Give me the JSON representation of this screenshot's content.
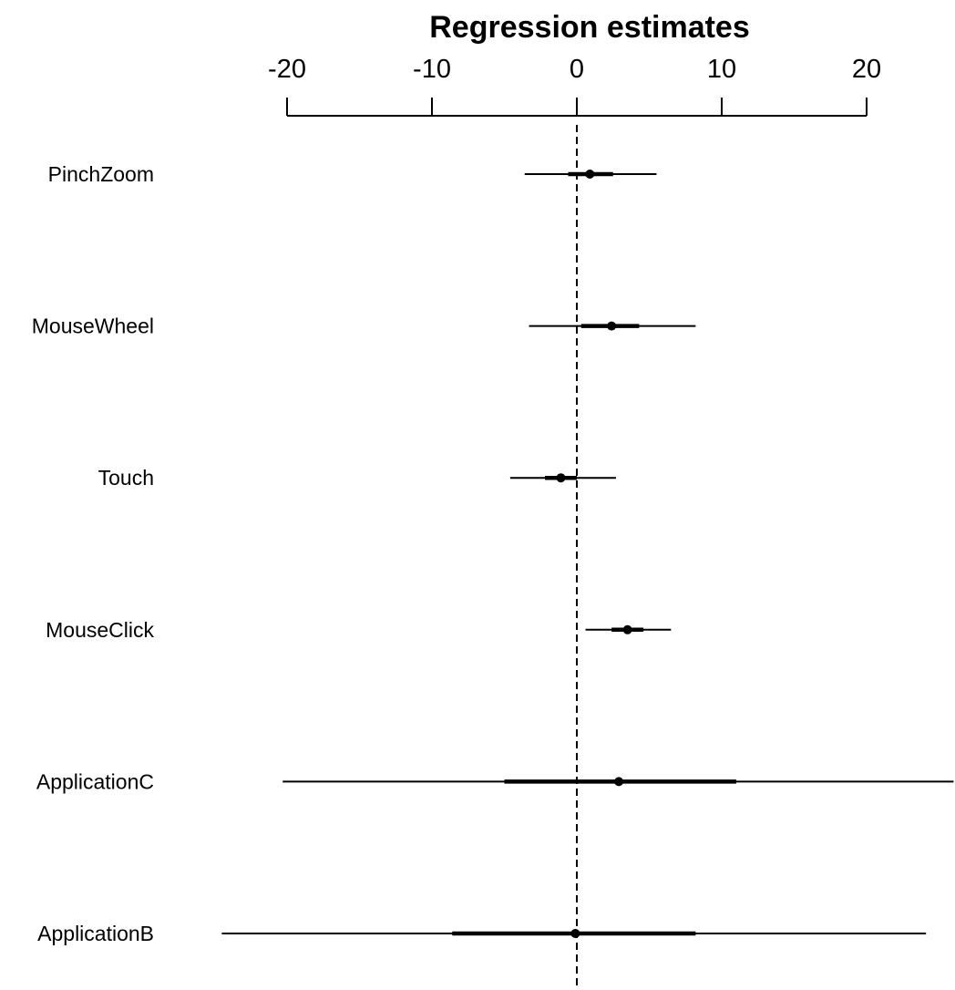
{
  "chart_data": {
    "type": "coefficient-plot",
    "title": "Regression estimates",
    "xlabel": "",
    "ylabel": "",
    "x_ticks": [
      -20,
      -10,
      0,
      10,
      20
    ],
    "x_tick_labels": [
      "-20",
      "-10",
      "0",
      "10",
      "20"
    ],
    "xlim": [
      -20,
      20
    ],
    "reference_line": 0,
    "axis_position": "top",
    "grid": false,
    "legend": "none",
    "colors": {
      "marks": "#000000",
      "reference_line": "#000000"
    },
    "rows": [
      {
        "label": "PinchZoom",
        "estimate": 0.9,
        "inner": [
          -0.6,
          2.5
        ],
        "outer": [
          -3.6,
          5.5
        ]
      },
      {
        "label": "MouseWheel",
        "estimate": 2.4,
        "inner": [
          0.3,
          4.3
        ],
        "outer": [
          -3.3,
          8.2
        ]
      },
      {
        "label": "Touch",
        "estimate": -1.1,
        "inner": [
          -2.2,
          0.0
        ],
        "outer": [
          -4.6,
          2.7
        ]
      },
      {
        "label": "MouseClick",
        "estimate": 3.5,
        "inner": [
          2.4,
          4.6
        ],
        "outer": [
          0.6,
          6.5
        ]
      },
      {
        "label": "ApplicationC",
        "estimate": 2.9,
        "inner": [
          -5.0,
          11.0
        ],
        "outer": [
          -20.3,
          26.0
        ]
      },
      {
        "label": "ApplicationB",
        "estimate": -0.1,
        "inner": [
          -8.6,
          8.2
        ],
        "outer": [
          -24.5,
          24.1
        ]
      }
    ]
  }
}
